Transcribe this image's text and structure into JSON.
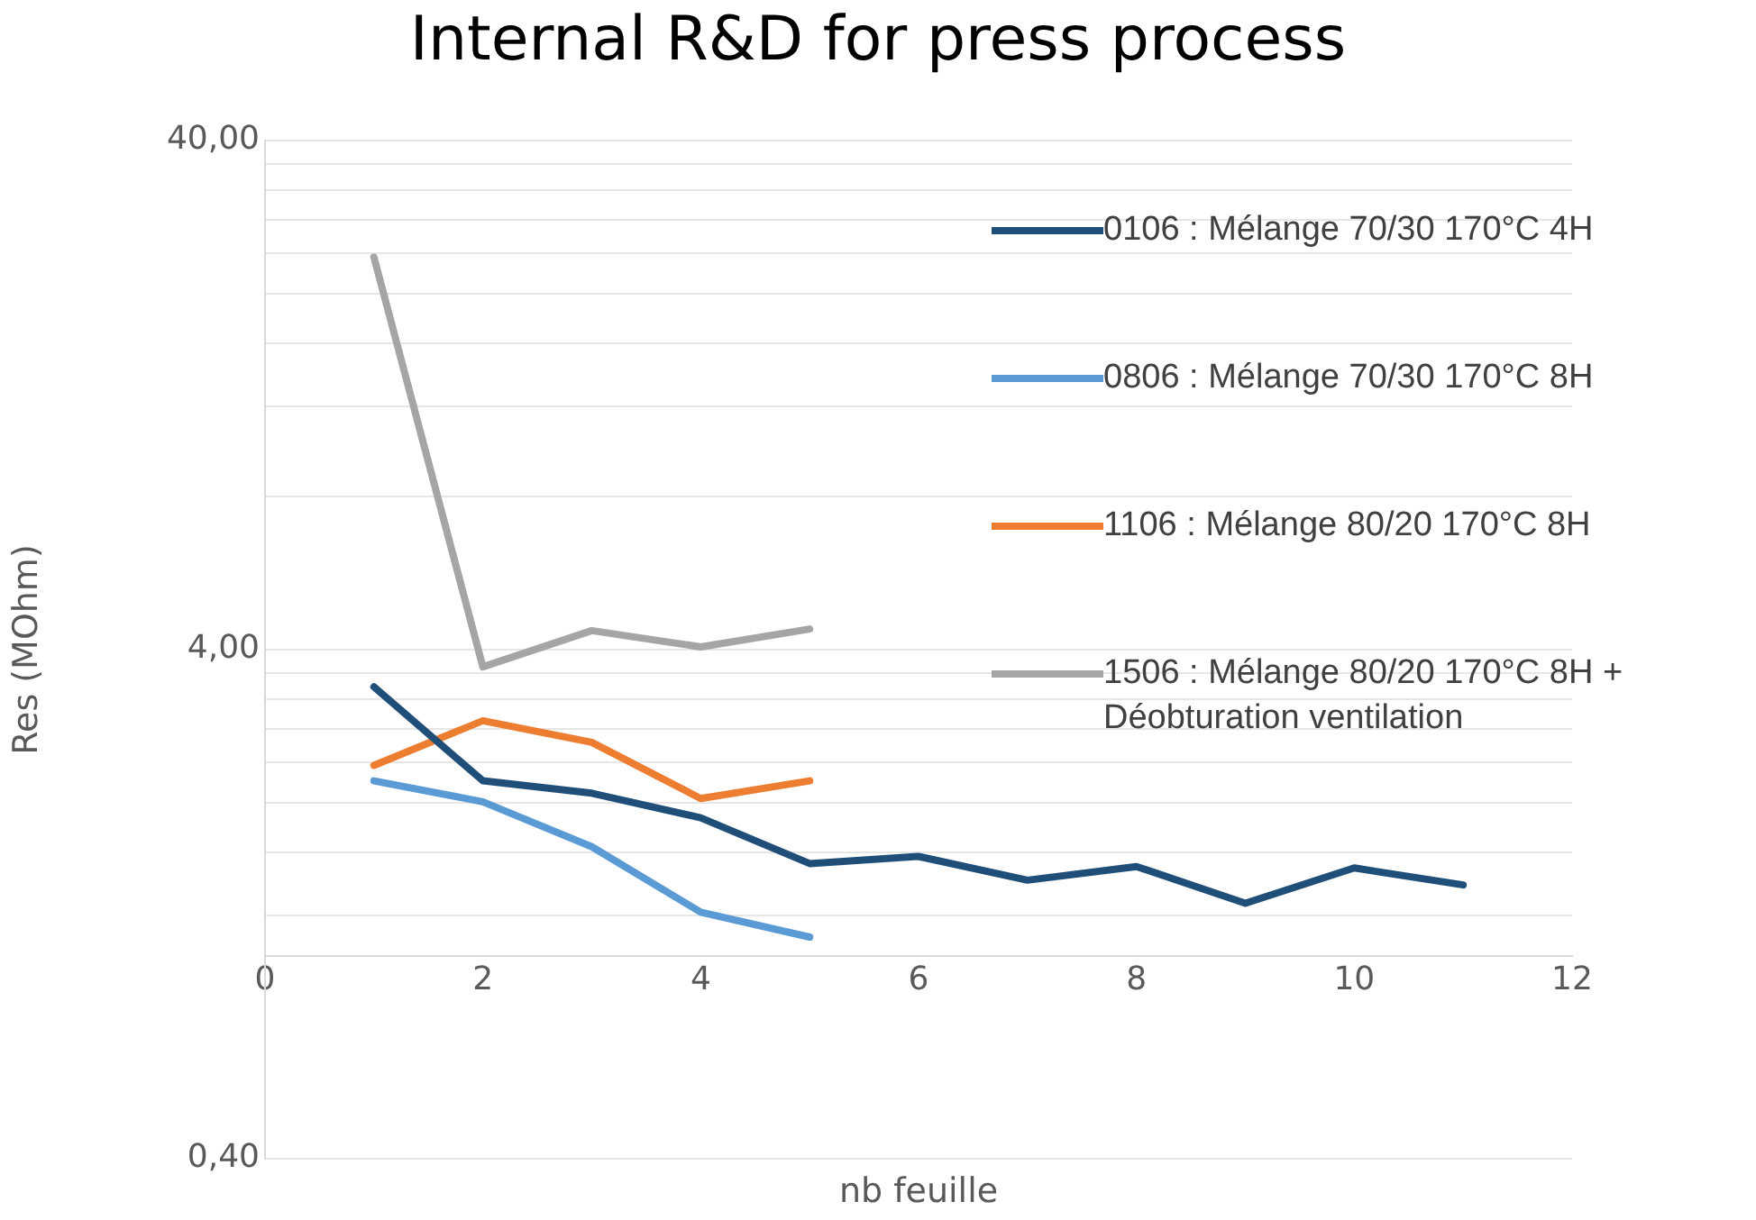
{
  "chart_data": {
    "type": "line",
    "title": "Internal R&D for press process",
    "xlabel": "nb feuille",
    "ylabel": "Res (MOhm)",
    "x": [
      1,
      2,
      3,
      4,
      5,
      6,
      7,
      8,
      9,
      10,
      11
    ],
    "series": [
      {
        "name": "0106 : Mélange 70/30 170°C 4H",
        "color": "#1f4e79",
        "values": [
          3.38,
          2.21,
          2.09,
          1.87,
          1.52,
          1.57,
          1.41,
          1.5,
          1.27,
          1.49,
          1.38
        ]
      },
      {
        "name": "0806 : Mélange 70/30 170°C 8H",
        "color": "#5b9bd5",
        "values": [
          2.21,
          2.01,
          1.64,
          1.22,
          1.09,
          null,
          null,
          null,
          null,
          null,
          null
        ]
      },
      {
        "name": "1106 : Mélange 80/20 170°C 8H",
        "color": "#ed7d31",
        "values": [
          2.37,
          2.9,
          2.63,
          2.04,
          2.21,
          null,
          null,
          null,
          null,
          null,
          null
        ]
      },
      {
        "name": "1506 : Mélange 80/20 170°C 8H + Déobturation ventilation",
        "color": "#a5a5a5",
        "values": [
          23.6,
          3.7,
          4.36,
          4.05,
          4.39,
          null,
          null,
          null,
          null,
          null,
          null
        ]
      }
    ],
    "log": "y",
    "xlim": [
      0,
      12
    ],
    "xticks": [
      0,
      2,
      4,
      6,
      8,
      10,
      12
    ],
    "ylim": [
      0.4,
      40
    ],
    "yticks": [
      {
        "value": 0.4,
        "label": "0,40"
      },
      {
        "value": 1.2,
        "label": null
      },
      {
        "value": 1.6,
        "label": null
      },
      {
        "value": 2,
        "label": null
      },
      {
        "value": 2.4,
        "label": null
      },
      {
        "value": 2.8,
        "label": null
      },
      {
        "value": 3.2,
        "label": null
      },
      {
        "value": 3.6,
        "label": null
      },
      {
        "value": 4,
        "label": "4,00"
      },
      {
        "value": 8,
        "label": null
      },
      {
        "value": 12,
        "label": null
      },
      {
        "value": 16,
        "label": null
      },
      {
        "value": 20,
        "label": null
      },
      {
        "value": 24,
        "label": null
      },
      {
        "value": 28,
        "label": null
      },
      {
        "value": 32,
        "label": null
      },
      {
        "value": 36,
        "label": null
      },
      {
        "value": 40,
        "label": "40,00"
      }
    ],
    "grid": "y",
    "legend": "right",
    "marker": "none",
    "line_style": "solid"
  }
}
